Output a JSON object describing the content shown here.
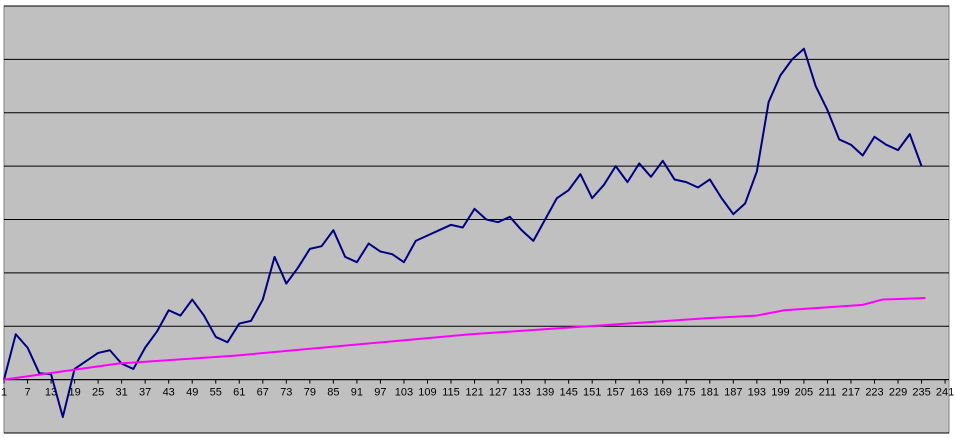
{
  "chart_data": {
    "type": "line",
    "title": "",
    "xlabel": "",
    "ylabel": "",
    "x_tick_labels": [
      "1",
      "7",
      "13",
      "19",
      "25",
      "31",
      "37",
      "43",
      "49",
      "55",
      "61",
      "67",
      "73",
      "79",
      "85",
      "91",
      "97",
      "103",
      "109",
      "115",
      "121",
      "127",
      "133",
      "139",
      "145",
      "151",
      "157",
      "163",
      "169",
      "175",
      "181",
      "187",
      "193",
      "199",
      "205",
      "211",
      "217",
      "223",
      "229",
      "235",
      "241"
    ],
    "x_range": [
      1,
      242
    ],
    "y_range": [
      -1,
      7
    ],
    "y_gridlines": [
      -1,
      0,
      1,
      2,
      3,
      4,
      5,
      6,
      7
    ],
    "grid": true,
    "legend": "none",
    "colors": {
      "plot_background": "#c0c0c0",
      "gridline": "#000000",
      "series_1": "#000080",
      "series_2": "#ff00ff"
    },
    "series": [
      {
        "x": [
          1,
          4,
          7,
          10,
          13,
          16,
          19,
          22,
          25,
          28,
          31,
          34,
          37,
          40,
          43,
          46,
          49,
          52,
          55,
          58,
          61,
          64,
          67,
          70,
          73,
          76,
          79,
          82,
          85,
          88,
          91,
          94,
          97,
          100,
          103,
          106,
          109,
          112,
          115,
          118,
          121,
          124,
          127,
          130,
          133,
          136,
          139,
          142,
          145,
          148,
          151,
          154,
          157,
          160,
          163,
          166,
          169,
          172,
          175,
          178,
          181,
          184,
          187,
          190,
          193,
          196,
          199,
          202,
          205,
          208,
          211,
          214,
          217,
          220,
          223,
          226,
          229,
          232,
          235
        ],
        "values": [
          0.0,
          0.85,
          0.6,
          0.12,
          0.1,
          -0.7,
          0.2,
          0.35,
          0.5,
          0.55,
          0.3,
          0.2,
          0.6,
          0.9,
          1.3,
          1.2,
          1.5,
          1.2,
          0.8,
          0.7,
          1.05,
          1.1,
          1.5,
          2.3,
          1.8,
          2.1,
          2.45,
          2.5,
          2.8,
          2.3,
          2.2,
          2.55,
          2.4,
          2.35,
          2.2,
          2.6,
          2.7,
          2.8,
          2.9,
          2.85,
          3.2,
          3.0,
          2.95,
          3.05,
          2.8,
          2.6,
          3.0,
          3.4,
          3.55,
          3.85,
          3.4,
          3.65,
          4.0,
          3.7,
          4.05,
          3.8,
          4.1,
          3.75,
          3.7,
          3.6,
          3.75,
          3.4,
          3.1,
          3.3,
          3.9,
          5.2,
          5.7,
          6.0,
          6.2,
          5.5,
          5.05,
          4.5,
          4.4,
          4.2,
          4.55,
          4.4,
          4.3,
          4.6,
          4.0
        ]
      },
      {
        "x": [
          1,
          30,
          60,
          90,
          120,
          150,
          180,
          193,
          200,
          220,
          225,
          236
        ],
        "values": [
          0.0,
          0.3,
          0.45,
          0.65,
          0.85,
          1.0,
          1.15,
          1.2,
          1.3,
          1.4,
          1.5,
          1.53
        ]
      }
    ]
  }
}
